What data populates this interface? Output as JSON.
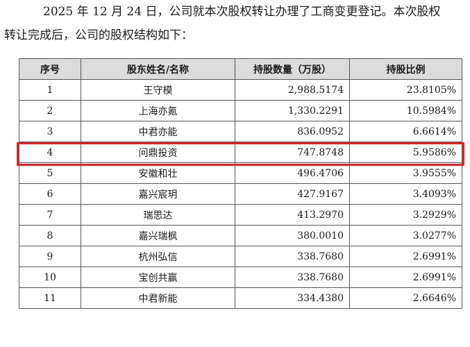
{
  "intro": {
    "line1": "2025 年 12 月 24 日，公司就本次股权转让办理了工商变更登记。本次股权",
    "line2": "转让完成后，公司的股权结构如下："
  },
  "table": {
    "headers": [
      "序号",
      "股东姓名/名称",
      "持股数量（万股）",
      "持股比例"
    ],
    "rows": [
      {
        "no": "1",
        "name": "王守模",
        "shares": "2,988.5174",
        "ratio": "23.8105%"
      },
      {
        "no": "2",
        "name": "上海亦氪",
        "shares": "1,330.2291",
        "ratio": "10.5984%"
      },
      {
        "no": "3",
        "name": "中君亦能",
        "shares": "836.0952",
        "ratio": "6.6614%"
      },
      {
        "no": "4",
        "name": "问鼎投资",
        "shares": "747.8748",
        "ratio": "5.9586%"
      },
      {
        "no": "5",
        "name": "安徽和壮",
        "shares": "496.4706",
        "ratio": "3.9555%"
      },
      {
        "no": "6",
        "name": "嘉兴宸玥",
        "shares": "427.9167",
        "ratio": "3.4093%"
      },
      {
        "no": "7",
        "name": "瑞思达",
        "shares": "413.2970",
        "ratio": "3.2929%"
      },
      {
        "no": "8",
        "name": "嘉兴瑞枫",
        "shares": "380.0010",
        "ratio": "3.0277%"
      },
      {
        "no": "9",
        "name": "杭州弘信",
        "shares": "338.7680",
        "ratio": "2.6991%"
      },
      {
        "no": "10",
        "name": "宝创共赢",
        "shares": "338.7680",
        "ratio": "2.6991%"
      },
      {
        "no": "11",
        "name": "中君新能",
        "shares": "334.4380",
        "ratio": "2.6646%"
      }
    ],
    "highlight_color": "#d8262a"
  }
}
